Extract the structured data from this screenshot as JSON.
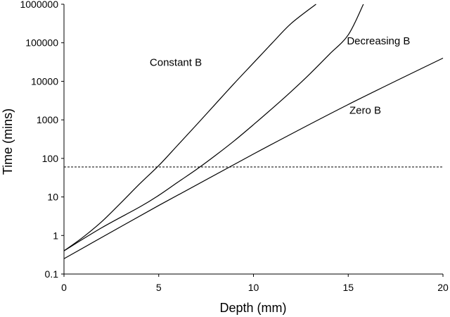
{
  "chart_data": {
    "type": "line",
    "xlabel": "Depth (mm)",
    "ylabel": "Time (mins)",
    "xlim": [
      0,
      20
    ],
    "ylim": [
      0.1,
      1000000
    ],
    "y_scale": "log",
    "grid": false,
    "x_ticks": [
      0,
      5,
      10,
      15,
      20
    ],
    "x_tick_labels": [
      "0",
      "5",
      "10",
      "15",
      "20"
    ],
    "y_ticks": [
      0.1,
      1,
      10,
      100,
      1000,
      10000,
      100000,
      1000000
    ],
    "y_tick_labels": [
      "0.1",
      "1",
      "10",
      "100",
      "1000",
      "10000",
      "100000",
      "1000000"
    ],
    "series": [
      {
        "name": "Constant B",
        "x": [
          0,
          1,
          2,
          3,
          4,
          5,
          6,
          7,
          8,
          9,
          10,
          11,
          12,
          13.3
        ],
        "y": [
          0.4,
          0.9,
          2.3,
          7,
          22,
          65,
          220,
          750,
          2600,
          9000,
          30000,
          100000,
          320000,
          1000000
        ]
      },
      {
        "name": "Decreasing B",
        "x": [
          0,
          2,
          4,
          5,
          6,
          7,
          8,
          9,
          10,
          11,
          12,
          13,
          14,
          15,
          15.8
        ],
        "y": [
          0.4,
          1.6,
          5.5,
          11,
          24,
          52,
          120,
          290,
          750,
          2000,
          5500,
          16000,
          50000,
          160000,
          1000000
        ]
      },
      {
        "name": "Zero B",
        "x": [
          0,
          5,
          10,
          15,
          20
        ],
        "y": [
          0.25,
          6,
          130,
          2500,
          40000
        ]
      }
    ],
    "reference_line": {
      "y": 60,
      "style": "dashed"
    },
    "annotations": [
      {
        "text": "Constant B",
        "x": 5.9,
        "y": 25000
      },
      {
        "text": "Decreasing B",
        "x": 16.6,
        "y": 90000
      },
      {
        "text": "Zero B",
        "x": 15.9,
        "y": 1450
      }
    ]
  }
}
